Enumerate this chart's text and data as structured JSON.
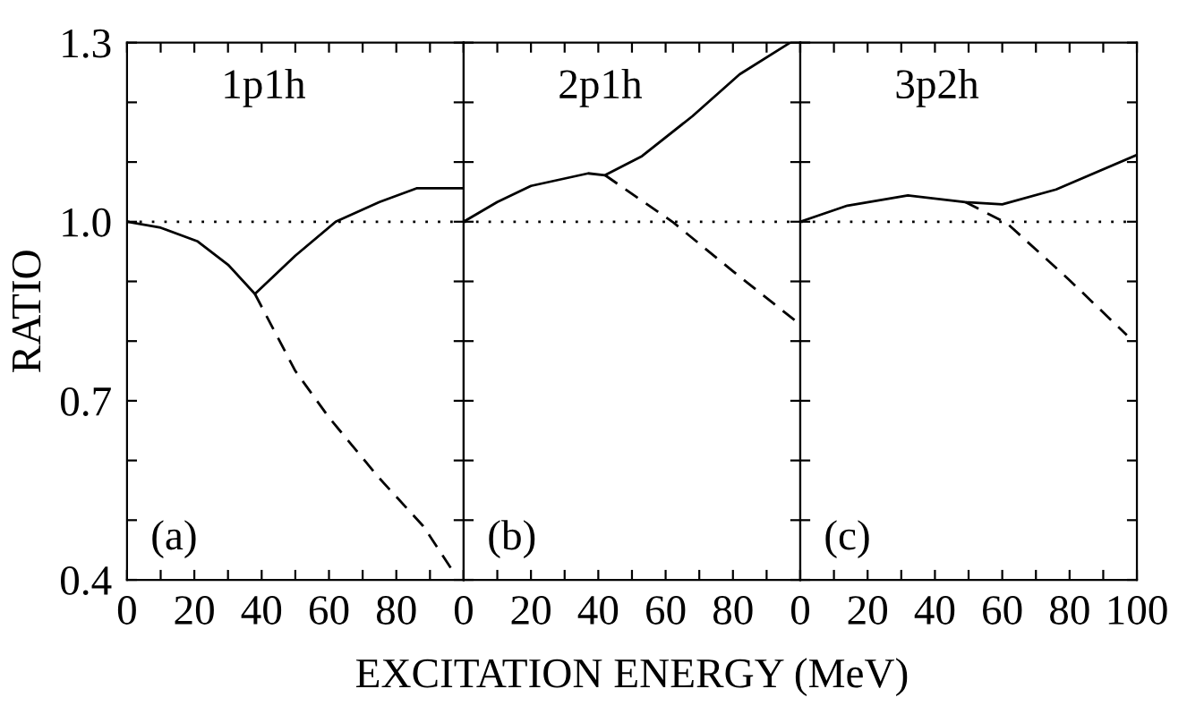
{
  "chart_data": [
    {
      "type": "line",
      "ylabel": "RATIO",
      "annotations": [
        "1p1h",
        "(a)"
      ],
      "xlim": [
        0,
        100
      ],
      "ylim": [
        0.4,
        1.3
      ],
      "xticks": [
        0,
        {
          "value": 10,
          "label": null
        },
        20,
        {
          "value": 30,
          "label": null
        },
        40,
        {
          "value": 50,
          "label": null
        },
        60,
        {
          "value": 70,
          "label": null
        },
        80,
        {
          "value": 90,
          "label": null
        },
        {
          "value": 100,
          "label": null
        }
      ],
      "yticks": [
        0.4,
        {
          "value": 0.5,
          "label": null
        },
        {
          "value": 0.6,
          "label": null
        },
        0.7,
        {
          "value": 0.8,
          "label": null
        },
        {
          "value": 0.9,
          "label": null
        },
        {
          "value": 1.0,
          "label": "1.0"
        },
        {
          "value": 1.1,
          "label": null
        },
        {
          "value": 1.2,
          "label": null
        },
        1.3
      ],
      "ref_lines": [
        {
          "axis": "y",
          "value": 1.0,
          "line_style": "dotted",
          "color": "#000000"
        }
      ],
      "grid": false,
      "legend": false,
      "marker": "none",
      "series": [
        {
          "color": "#000000",
          "line_style": "solid",
          "x": [
            0,
            10,
            21,
            30,
            38,
            50,
            62,
            75,
            86,
            100
          ],
          "values": [
            1.0,
            0.99,
            0.967,
            0.928,
            0.879,
            0.943,
            1.0,
            1.033,
            1.056,
            1.056
          ]
        },
        {
          "color": "#000000",
          "line_style": "dashed",
          "x": [
            38,
            50,
            60,
            75,
            88,
            97
          ],
          "values": [
            0.879,
            0.75,
            0.672,
            0.57,
            0.49,
            0.413
          ]
        }
      ]
    },
    {
      "type": "line",
      "xlabel": "EXCITATION ENERGY (MeV)",
      "annotations": [
        "2p1h",
        "(b)"
      ],
      "xlim": [
        0,
        100
      ],
      "ylim": [
        0.4,
        1.3
      ],
      "tick_labels": "x",
      "xticks": [
        0,
        {
          "value": 10,
          "label": null
        },
        20,
        {
          "value": 30,
          "label": null
        },
        40,
        {
          "value": 50,
          "label": null
        },
        60,
        {
          "value": 70,
          "label": null
        },
        80,
        {
          "value": 90,
          "label": null
        },
        {
          "value": 100,
          "label": null
        }
      ],
      "yticks": [
        {
          "value": 0.4,
          "label": null
        },
        {
          "value": 0.5,
          "label": null
        },
        {
          "value": 0.6,
          "label": null
        },
        {
          "value": 0.7,
          "label": null
        },
        {
          "value": 0.8,
          "label": null
        },
        {
          "value": 0.9,
          "label": null
        },
        {
          "value": 1.0,
          "label": null
        },
        {
          "value": 1.1,
          "label": null
        },
        {
          "value": 1.2,
          "label": null
        },
        {
          "value": 1.3,
          "label": null
        }
      ],
      "ref_lines": [
        {
          "axis": "y",
          "value": 1.0,
          "line_style": "dotted",
          "color": "#000000"
        }
      ],
      "grid": false,
      "legend": false,
      "marker": "none",
      "series": [
        {
          "color": "#000000",
          "line_style": "solid",
          "x": [
            0,
            10,
            20,
            37,
            42,
            53,
            68,
            82,
            97
          ],
          "values": [
            1.0,
            1.033,
            1.06,
            1.081,
            1.078,
            1.11,
            1.177,
            1.247,
            1.3
          ]
        },
        {
          "color": "#000000",
          "line_style": "dashed",
          "x": [
            42,
            62,
            80,
            99
          ],
          "values": [
            1.078,
            1.0,
            0.917,
            0.832
          ]
        }
      ]
    },
    {
      "type": "line",
      "annotations": [
        "3p2h",
        "(c)"
      ],
      "xlim": [
        0,
        100
      ],
      "ylim": [
        0.4,
        1.3
      ],
      "tick_labels": "x",
      "xticks": [
        0,
        {
          "value": 10,
          "label": null
        },
        20,
        {
          "value": 30,
          "label": null
        },
        40,
        {
          "value": 50,
          "label": null
        },
        60,
        {
          "value": 70,
          "label": null
        },
        80,
        {
          "value": 90,
          "label": null
        },
        100
      ],
      "yticks": [
        {
          "value": 0.4,
          "label": null
        },
        {
          "value": 0.5,
          "label": null
        },
        {
          "value": 0.6,
          "label": null
        },
        {
          "value": 0.7,
          "label": null
        },
        {
          "value": 0.8,
          "label": null
        },
        {
          "value": 0.9,
          "label": null
        },
        {
          "value": 1.0,
          "label": null
        },
        {
          "value": 1.1,
          "label": null
        },
        {
          "value": 1.2,
          "label": null
        },
        {
          "value": 1.3,
          "label": null
        }
      ],
      "ref_lines": [
        {
          "axis": "y",
          "value": 1.0,
          "line_style": "dotted",
          "color": "#000000"
        }
      ],
      "grid": false,
      "legend": false,
      "marker": "none",
      "series": [
        {
          "color": "#000000",
          "line_style": "solid",
          "x": [
            0,
            14,
            32,
            49,
            60,
            76,
            100
          ],
          "values": [
            1.0,
            1.027,
            1.044,
            1.033,
            1.029,
            1.054,
            1.112
          ]
        },
        {
          "color": "#000000",
          "line_style": "dashed",
          "x": [
            49,
            61.5,
            80,
            97
          ],
          "values": [
            1.033,
            0.997,
            0.902,
            0.81
          ]
        }
      ]
    }
  ]
}
